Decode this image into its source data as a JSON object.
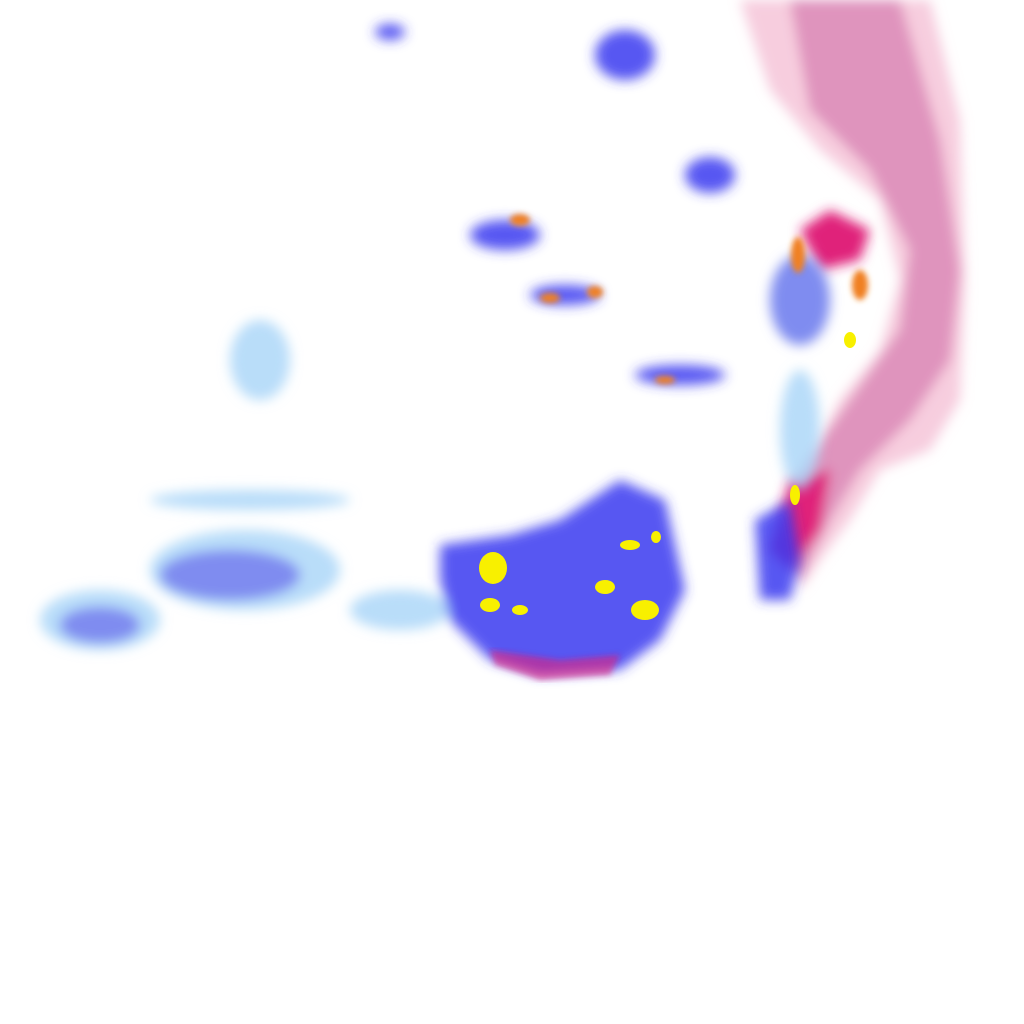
{
  "map": {
    "layer": "precipitation-radar-overlay",
    "background_color": "#ffffff",
    "precip_type_colors": {
      "rain_light": "#a8d4f8",
      "rain_moderate": "#7f8cf0",
      "rain_heavy": "#3a3af0",
      "rain_intense": "#f08020",
      "rain_extreme": "#f8f000",
      "mixed_light": "#f4b8d0",
      "mixed_moderate": "#d070a8",
      "mixed_heavy": "#e0207a"
    }
  }
}
